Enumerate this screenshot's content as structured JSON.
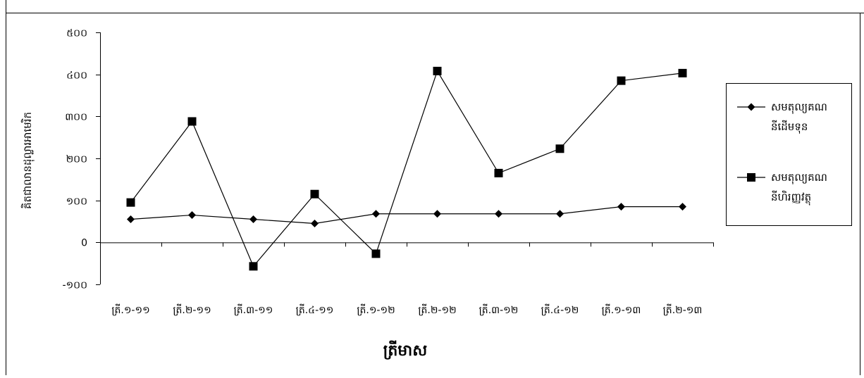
{
  "chart_data": {
    "type": "line",
    "title": "",
    "xlabel": "ត្រីមាស",
    "ylabel": "គិតជាលានដុល្លារអាមេរិក",
    "ylim": [
      -100,
      500
    ],
    "yticks": [
      {
        "value": 500,
        "label": "៥០០"
      },
      {
        "value": 400,
        "label": "៤០០"
      },
      {
        "value": 300,
        "label": "៣០០"
      },
      {
        "value": 200,
        "label": "២០០"
      },
      {
        "value": 100,
        "label": "១០០"
      },
      {
        "value": 0,
        "label": "0"
      },
      {
        "value": -100,
        "label": "-១០០"
      }
    ],
    "categories": [
      "ត្រី.១-១១",
      "ត្រី.២-១១",
      "ត្រី.៣-១១",
      "ត្រី.៤-១១",
      "ត្រី.១-១២",
      "ត្រី.២-១២",
      "ត្រី.៣-១២",
      "ត្រី.៤-១២",
      "ត្រី.១-១៣",
      "ត្រី.២-១៣"
    ],
    "series": [
      {
        "name": "សមតុល្យគណនីដើមទុន",
        "marker": "diamond",
        "values": [
          55,
          65,
          55,
          45,
          68,
          68,
          68,
          68,
          85,
          85
        ]
      },
      {
        "name": "សមតុល្យគណនីហិរញ្ញវត្ថុ",
        "marker": "square",
        "values": [
          95,
          288,
          -57,
          115,
          -27,
          408,
          165,
          223,
          385,
          403
        ]
      }
    ],
    "grid": false,
    "legend": "right"
  }
}
